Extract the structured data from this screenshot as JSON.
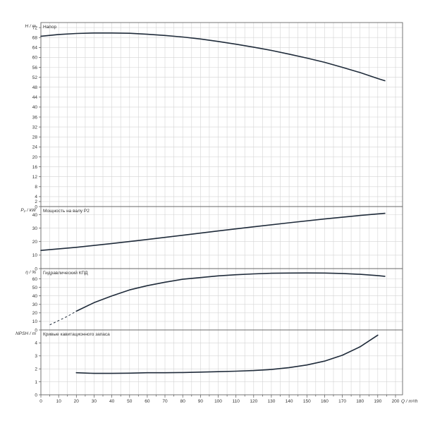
{
  "chart_data": {
    "type": "line",
    "x_axis": {
      "label": "Q / m³/h",
      "range": [
        0,
        200
      ],
      "ticks": [
        0,
        10,
        20,
        30,
        40,
        50,
        60,
        70,
        80,
        90,
        100,
        110,
        120,
        130,
        140,
        150,
        160,
        170,
        180,
        190,
        200
      ],
      "tick_labels": [
        "0",
        "10",
        "20",
        "30",
        "40",
        "50",
        "60",
        "70",
        "80",
        "90",
        "100",
        "110",
        "120",
        "130",
        "140",
        "150",
        "160",
        "170",
        "180",
        "190",
        "200"
      ]
    },
    "grid": true,
    "panels": [
      {
        "id": "head",
        "title": "Напор",
        "ylabel": "H / m",
        "ylim": [
          0,
          74
        ],
        "yticks": [
          0,
          2,
          4,
          8,
          12,
          16,
          20,
          24,
          28,
          32,
          36,
          40,
          44,
          48,
          52,
          56,
          60,
          64,
          68,
          72
        ],
        "ytick_labels": [
          "0",
          "2",
          "4",
          "8",
          "12",
          "16",
          "20",
          "24",
          "28",
          "32",
          "36",
          "40",
          "44",
          "48",
          "52",
          "56",
          "60",
          "64",
          "68",
          "72"
        ],
        "series": [
          {
            "x": [
              0,
              10,
              20,
              30,
              40,
              50,
              60,
              70,
              80,
              90,
              100,
              110,
              120,
              130,
              140,
              150,
              160,
              170,
              180,
              190,
              194
            ],
            "y": [
              68.5,
              69.2,
              69.6,
              69.8,
              69.8,
              69.7,
              69.3,
              68.8,
              68.2,
              67.4,
              66.4,
              65.3,
              64.1,
              62.8,
              61.3,
              59.7,
              58.0,
              56.0,
              53.9,
              51.5,
              50.6
            ],
            "dashed_x_max": 0
          }
        ]
      },
      {
        "id": "power",
        "title": "Мощность на валу P2",
        "ylabel": "P₂ / kW",
        "ylim": [
          0,
          46
        ],
        "yticks": [
          0,
          10,
          20,
          30,
          40
        ],
        "ytick_labels": [
          "0",
          "10",
          "20",
          "30",
          "40"
        ],
        "series": [
          {
            "x": [
              0,
              20,
              40,
              60,
              80,
              100,
              120,
              140,
              160,
              180,
              194
            ],
            "y": [
              13.5,
              15.8,
              18.6,
              21.6,
              24.7,
              27.9,
              31.0,
              34.0,
              36.8,
              39.4,
              41.0
            ],
            "dashed_x_max": 0
          }
        ]
      },
      {
        "id": "efficiency",
        "title": "Гидравлический КПД",
        "ylabel": "η / %",
        "ylim": [
          0,
          72
        ],
        "yticks": [
          0,
          10,
          20,
          30,
          40,
          50,
          60
        ],
        "ytick_labels": [
          "0",
          "10",
          "20",
          "30",
          "40",
          "50",
          "60"
        ],
        "series": [
          {
            "x": [
              5,
              10,
              15,
              20,
              30,
              40,
              50,
              60,
              70,
              80,
              90,
              100,
              110,
              120,
              130,
              140,
              150,
              160,
              170,
              180,
              190,
              194
            ],
            "y": [
              6,
              11,
              16,
              22,
              32,
              40,
              47,
              52,
              56,
              59.5,
              61.5,
              63.5,
              64.8,
              65.8,
              66.5,
              66.8,
              66.9,
              66.8,
              66.3,
              65.3,
              63.8,
              63.0
            ],
            "dashed_x_max": 20
          }
        ]
      },
      {
        "id": "npsh",
        "title": "Кривые кавитационного запаса",
        "ylabel": "NPSH / m",
        "ylim": [
          0,
          5
        ],
        "yticks": [
          0,
          1,
          2,
          3,
          4
        ],
        "ytick_labels": [
          "0",
          "1",
          "2",
          "3",
          "4"
        ],
        "series": [
          {
            "x": [
              20,
              30,
              40,
              50,
              60,
              70,
              80,
              90,
              100,
              110,
              120,
              130,
              140,
              150,
              160,
              170,
              180,
              190
            ],
            "y": [
              1.7,
              1.65,
              1.65,
              1.67,
              1.7,
              1.7,
              1.72,
              1.75,
              1.78,
              1.82,
              1.87,
              1.95,
              2.1,
              2.3,
              2.6,
              3.05,
              3.7,
              4.6
            ],
            "dashed_x_max": 0
          }
        ]
      }
    ]
  }
}
